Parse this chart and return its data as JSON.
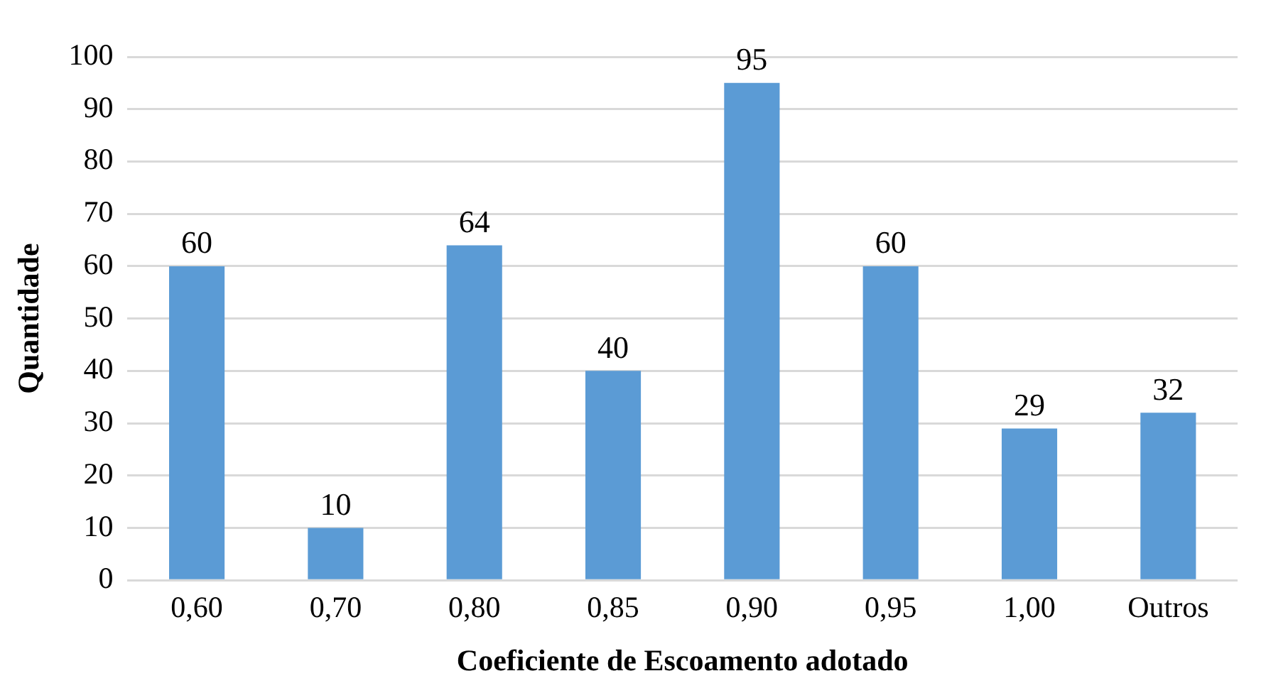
{
  "chart_data": {
    "type": "bar",
    "xlabel": "Coeficiente de Escoamento adotado",
    "ylabel": "Quantidade",
    "categories": [
      "0,60",
      "0,70",
      "0,80",
      "0,85",
      "0,90",
      "0,95",
      "1,00",
      "Outros"
    ],
    "values": [
      60,
      10,
      64,
      40,
      95,
      60,
      29,
      32
    ],
    "color": "#5b9bd5",
    "ylim": [
      0,
      100
    ],
    "yticks": [
      0,
      10,
      20,
      30,
      40,
      50,
      60,
      70,
      80,
      90,
      100
    ],
    "grid": "y",
    "data_labels": true
  }
}
